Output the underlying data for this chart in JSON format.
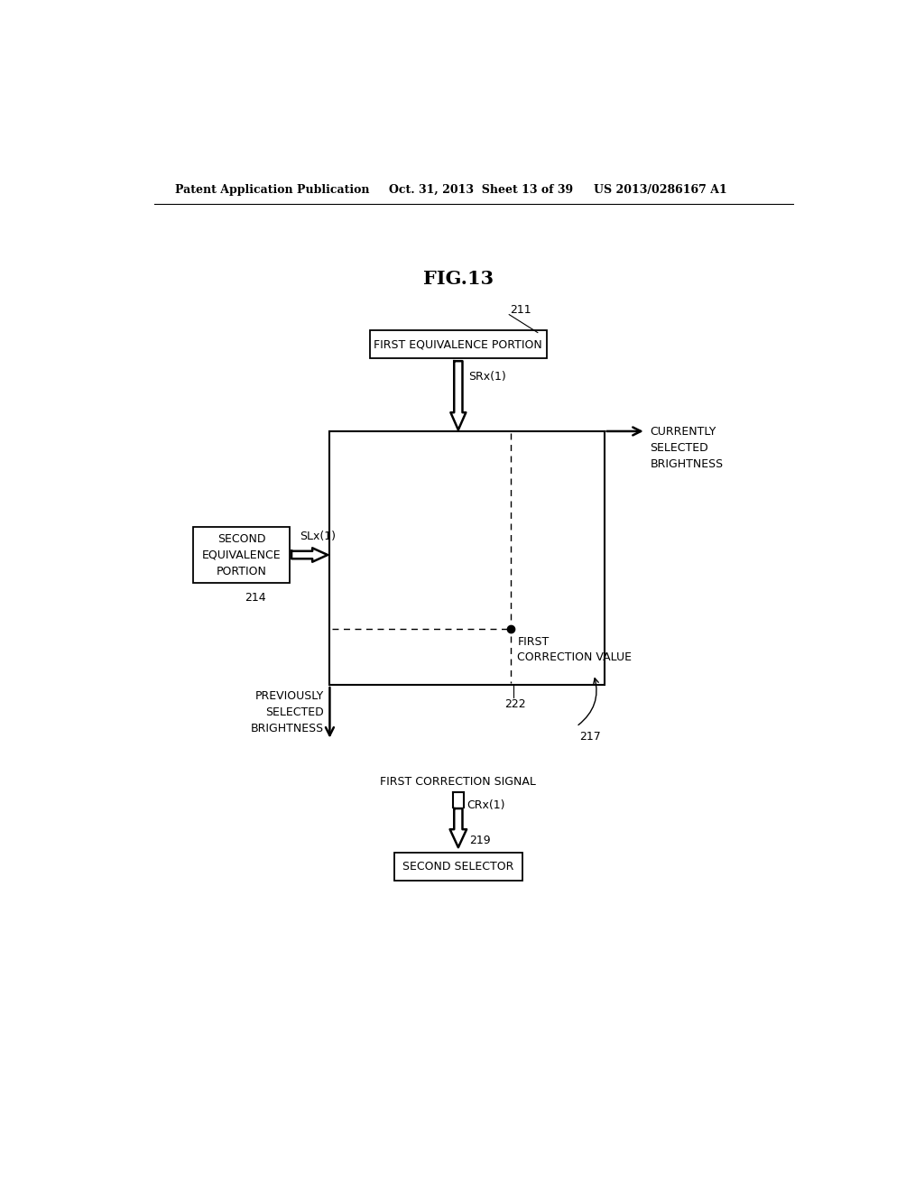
{
  "bg_color": "#ffffff",
  "header_left": "Patent Application Publication",
  "header_mid": "Oct. 31, 2013  Sheet 13 of 39",
  "header_right": "US 2013/0286167 A1",
  "fig_title": "FIG.13",
  "box_first_equiv": "FIRST EQUIVALENCE PORTION",
  "box_second_equiv": "SECOND\nEQUIVALENCE\nPORTION",
  "box_second_selector": "SECOND SELECTOR",
  "label_211": "211",
  "label_214": "214",
  "label_217": "217",
  "label_219": "219",
  "label_222": "222",
  "label_srx": "SRx(1)",
  "label_slx": "SLx(1)",
  "label_crx": "CRx(1)",
  "label_currently": "CURRENTLY\nSELECTED\nBRIGHTNESS",
  "label_previously": "PREVIOUSLY\nSELECTED\nBRIGHTNESS",
  "label_first_correction_value": "FIRST\nCORRECTION VALUE",
  "label_first_correction_signal": "FIRST CORRECTION SIGNAL"
}
